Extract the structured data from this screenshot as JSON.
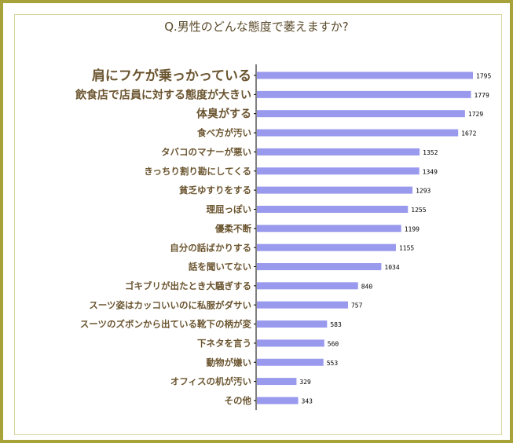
{
  "title": "Q.男性のどんな態度で萎えますか?",
  "colors": {
    "border": "#a8a23a",
    "bar": "#9999ee",
    "label": "#6b5530",
    "axis": "#000000"
  },
  "chart_data": {
    "type": "bar",
    "orientation": "horizontal",
    "title": "Q.男性のどんな態度で萎えますか?",
    "xlabel": "",
    "ylabel": "",
    "xlim": [
      0,
      1900
    ],
    "grid": false,
    "categories": [
      "肩にフケが乗っかっている",
      "飲食店で店員に対する態度が大きい",
      "体臭がする",
      "食べ方が汚い",
      "タバコのマナーが悪い",
      "きっちり割り勘にしてくる",
      "貧乏ゆすりをする",
      "理屈っぽい",
      "優柔不断",
      "自分の話ばかりする",
      "話を聞いてない",
      "ゴキブリが出たとき大騒ぎする",
      "スーツ姿はカッコいいのに私服がダサい",
      "スーツのズボンから出ている靴下の柄が変",
      "下ネタを言う",
      "動物が嫌い",
      "オフィスの机が汚い",
      "その他"
    ],
    "values": [
      1795,
      1779,
      1729,
      1672,
      1352,
      1349,
      1293,
      1255,
      1199,
      1155,
      1034,
      840,
      757,
      583,
      560,
      553,
      329,
      343
    ],
    "data_labels": [
      "1795",
      "1779",
      "1729",
      "1672",
      "1352",
      "1349",
      "1293",
      "1255",
      "1199",
      "1155",
      "1034",
      "840",
      "757",
      "583",
      "560",
      "553",
      "329",
      "343"
    ]
  }
}
